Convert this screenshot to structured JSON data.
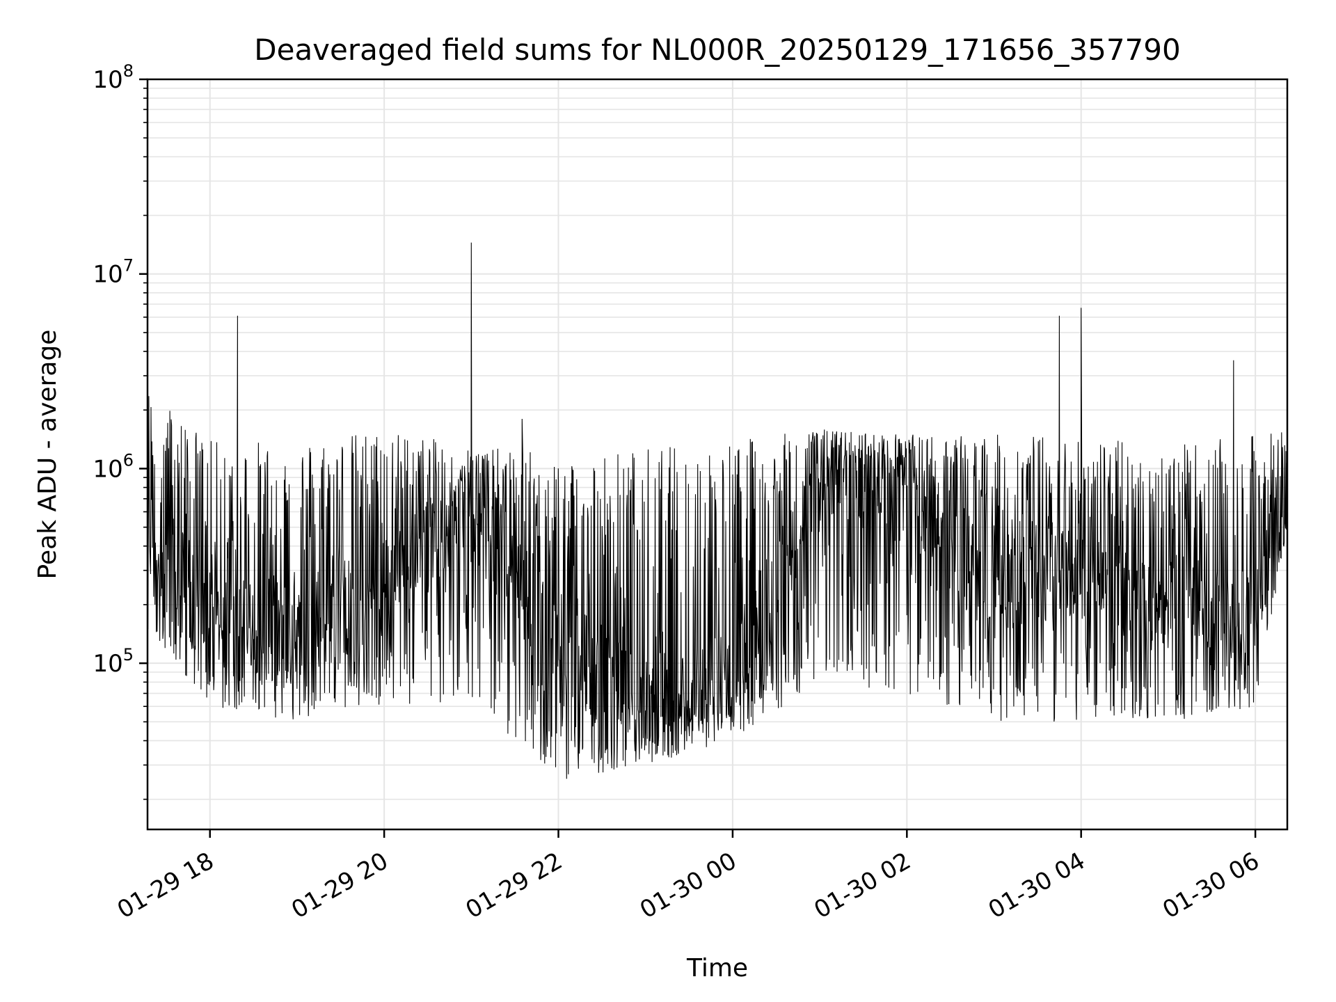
{
  "chart_data": {
    "type": "line",
    "title": "Deaveraged field sums for NL000R_20250129_171656_357790",
    "xlabel": "Time",
    "ylabel": "Peak ADU - average",
    "yscale": "log",
    "ylim": [
      14000,
      100000000
    ],
    "xlim": [
      "2025-01-29 17:17",
      "2025-01-30 06:22"
    ],
    "grid": true,
    "line_color": "#000000",
    "grid_color": "#e5e5e5",
    "x_ticks": [
      "01-29 18",
      "01-29 20",
      "01-29 22",
      "01-30 00",
      "01-30 02",
      "01-30 04",
      "01-30 06"
    ],
    "y_ticks": [
      {
        "base": "10",
        "exp": "5"
      },
      {
        "base": "10",
        "exp": "6"
      },
      {
        "base": "10",
        "exp": "7"
      },
      {
        "base": "10",
        "exp": "8"
      }
    ],
    "series": [
      {
        "values_summary": "dense noisy trace between ~2e4 and ~1.8e6",
        "envelope": {
          "x": [
            "2025-01-29 17:17",
            "2025-01-29 18:00",
            "2025-01-29 19:00",
            "2025-01-29 20:00",
            "2025-01-29 21:00",
            "2025-01-29 22:00",
            "2025-01-29 23:00",
            "2025-01-30 00:00",
            "2025-01-30 01:00",
            "2025-01-30 02:00",
            "2025-01-30 03:00",
            "2025-01-30 04:00",
            "2025-01-30 05:00",
            "2025-01-30 06:00",
            "2025-01-30 06:22"
          ],
          "y_high": [
            2700000,
            1400000,
            1400000,
            1600000,
            1300000,
            1200000,
            1300000,
            1400000,
            1600000,
            1500000,
            1500000,
            1500000,
            1300000,
            1500000,
            1600000
          ],
          "y_mid": [
            500000,
            160000,
            150000,
            250000,
            700000,
            120000,
            60000,
            90000,
            800000,
            800000,
            250000,
            300000,
            200000,
            200000,
            800000
          ],
          "y_low": [
            150000,
            60000,
            50000,
            60000,
            60000,
            25000,
            30000,
            40000,
            80000,
            70000,
            50000,
            50000,
            50000,
            60000,
            500000
          ]
        },
        "spikes": [
          {
            "x": "2025-01-29 18:19",
            "y": 6100000
          },
          {
            "x": "2025-01-29 21:00",
            "y": 14500000
          },
          {
            "x": "2025-01-29 21:35",
            "y": 1800000
          },
          {
            "x": "2025-01-30 03:45",
            "y": 6100000
          },
          {
            "x": "2025-01-30 04:00",
            "y": 6700000
          },
          {
            "x": "2025-01-30 05:45",
            "y": 3600000
          }
        ]
      }
    ]
  }
}
